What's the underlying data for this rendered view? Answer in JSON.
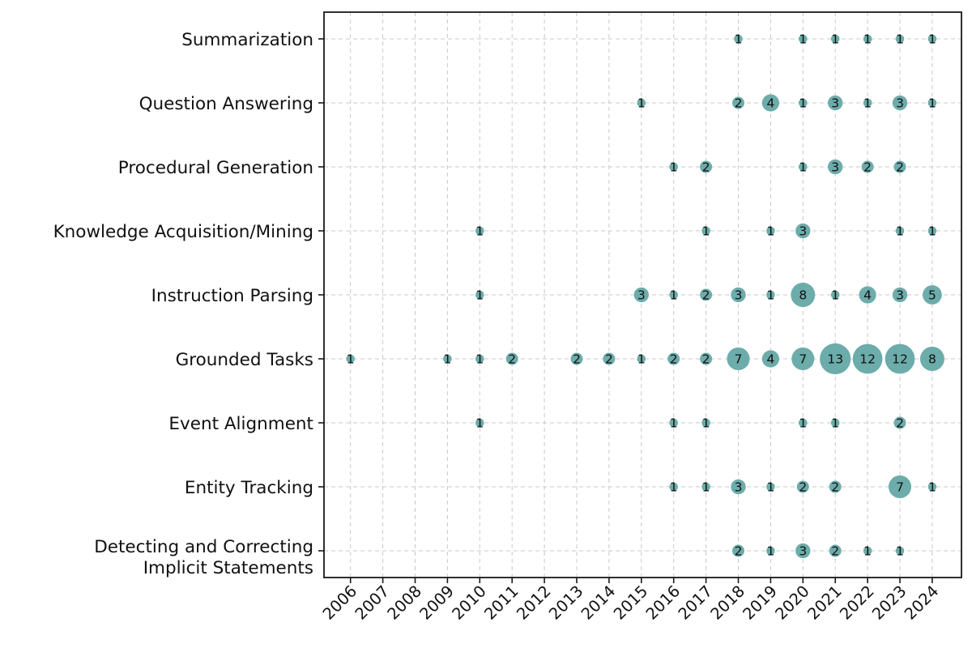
{
  "figure": {
    "background": "#ffffff",
    "description": "Bubble chart of NLP task categories by publication year with paper counts"
  },
  "chart_data": {
    "type": "scatter",
    "title": "",
    "xlabel": "",
    "ylabel": "",
    "legend": "none",
    "grid": "dashed gridlines on both axes",
    "size_rule": "bubble radius proportional to sqrt(count)",
    "x_categories": [
      "2006",
      "2007",
      "2008",
      "2009",
      "2010",
      "2011",
      "2012",
      "2013",
      "2014",
      "2015",
      "2016",
      "2017",
      "2018",
      "2019",
      "2020",
      "2021",
      "2022",
      "2023",
      "2024"
    ],
    "y_categories": [
      {
        "id": "summarization",
        "lines": [
          "Summarization"
        ]
      },
      {
        "id": "question-answering",
        "lines": [
          "Question Answering"
        ]
      },
      {
        "id": "procedural-generation",
        "lines": [
          "Procedural Generation"
        ]
      },
      {
        "id": "knowledge-acquisition-mining",
        "lines": [
          "Knowledge Acquisition/Mining"
        ]
      },
      {
        "id": "instruction-parsing",
        "lines": [
          "Instruction Parsing"
        ]
      },
      {
        "id": "grounded-tasks",
        "lines": [
          "Grounded Tasks"
        ]
      },
      {
        "id": "event-alignment",
        "lines": [
          "Event Alignment"
        ]
      },
      {
        "id": "entity-tracking",
        "lines": [
          "Entity Tracking"
        ]
      },
      {
        "id": "detecting-implicit-statements",
        "lines": [
          "Detecting and Correcting",
          "Implicit Statements"
        ]
      }
    ],
    "series": [
      {
        "task": "Summarization",
        "points": [
          {
            "year": "2018",
            "count": 1
          },
          {
            "year": "2020",
            "count": 1
          },
          {
            "year": "2021",
            "count": 1
          },
          {
            "year": "2022",
            "count": 1
          },
          {
            "year": "2023",
            "count": 1
          },
          {
            "year": "2024",
            "count": 1
          }
        ]
      },
      {
        "task": "Question Answering",
        "points": [
          {
            "year": "2015",
            "count": 1
          },
          {
            "year": "2018",
            "count": 2
          },
          {
            "year": "2019",
            "count": 4
          },
          {
            "year": "2020",
            "count": 1
          },
          {
            "year": "2021",
            "count": 3
          },
          {
            "year": "2022",
            "count": 1
          },
          {
            "year": "2023",
            "count": 3
          },
          {
            "year": "2024",
            "count": 1
          }
        ]
      },
      {
        "task": "Procedural Generation",
        "points": [
          {
            "year": "2016",
            "count": 1
          },
          {
            "year": "2017",
            "count": 2
          },
          {
            "year": "2020",
            "count": 1
          },
          {
            "year": "2021",
            "count": 3
          },
          {
            "year": "2022",
            "count": 2
          },
          {
            "year": "2023",
            "count": 2
          }
        ]
      },
      {
        "task": "Knowledge Acquisition/Mining",
        "points": [
          {
            "year": "2010",
            "count": 1
          },
          {
            "year": "2017",
            "count": 1
          },
          {
            "year": "2019",
            "count": 1
          },
          {
            "year": "2020",
            "count": 3
          },
          {
            "year": "2023",
            "count": 1
          },
          {
            "year": "2024",
            "count": 1
          }
        ]
      },
      {
        "task": "Instruction Parsing",
        "points": [
          {
            "year": "2010",
            "count": 1
          },
          {
            "year": "2015",
            "count": 3
          },
          {
            "year": "2016",
            "count": 1
          },
          {
            "year": "2017",
            "count": 2
          },
          {
            "year": "2018",
            "count": 3
          },
          {
            "year": "2019",
            "count": 1
          },
          {
            "year": "2020",
            "count": 8
          },
          {
            "year": "2021",
            "count": 1
          },
          {
            "year": "2022",
            "count": 4
          },
          {
            "year": "2023",
            "count": 3
          },
          {
            "year": "2024",
            "count": 5
          }
        ]
      },
      {
        "task": "Grounded Tasks",
        "points": [
          {
            "year": "2006",
            "count": 1
          },
          {
            "year": "2009",
            "count": 1
          },
          {
            "year": "2010",
            "count": 1
          },
          {
            "year": "2011",
            "count": 2
          },
          {
            "year": "2013",
            "count": 2
          },
          {
            "year": "2014",
            "count": 2
          },
          {
            "year": "2015",
            "count": 1
          },
          {
            "year": "2016",
            "count": 2
          },
          {
            "year": "2017",
            "count": 2
          },
          {
            "year": "2018",
            "count": 7
          },
          {
            "year": "2019",
            "count": 4
          },
          {
            "year": "2020",
            "count": 7
          },
          {
            "year": "2021",
            "count": 13
          },
          {
            "year": "2022",
            "count": 12
          },
          {
            "year": "2023",
            "count": 12
          },
          {
            "year": "2024",
            "count": 8
          }
        ]
      },
      {
        "task": "Event Alignment",
        "points": [
          {
            "year": "2010",
            "count": 1
          },
          {
            "year": "2016",
            "count": 1
          },
          {
            "year": "2017",
            "count": 1
          },
          {
            "year": "2020",
            "count": 1
          },
          {
            "year": "2021",
            "count": 1
          },
          {
            "year": "2023",
            "count": 2
          }
        ]
      },
      {
        "task": "Entity Tracking",
        "points": [
          {
            "year": "2016",
            "count": 1
          },
          {
            "year": "2017",
            "count": 1
          },
          {
            "year": "2018",
            "count": 3
          },
          {
            "year": "2019",
            "count": 1
          },
          {
            "year": "2020",
            "count": 2
          },
          {
            "year": "2021",
            "count": 2
          },
          {
            "year": "2023",
            "count": 7
          },
          {
            "year": "2024",
            "count": 1
          }
        ]
      },
      {
        "task": "Detecting and Correcting Implicit Statements",
        "points": [
          {
            "year": "2018",
            "count": 2
          },
          {
            "year": "2019",
            "count": 1
          },
          {
            "year": "2020",
            "count": 3
          },
          {
            "year": "2021",
            "count": 2
          },
          {
            "year": "2022",
            "count": 1
          },
          {
            "year": "2023",
            "count": 1
          }
        ]
      }
    ],
    "style": {
      "bubble_color": "#6cacaa",
      "bubble_label_color": "#111111",
      "grid_color": "#c9c9c9",
      "axis_color": "#1a1a1a",
      "tick_label_color": "#111111"
    }
  }
}
